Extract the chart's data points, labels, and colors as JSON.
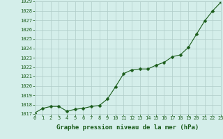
{
  "hours": [
    0,
    1,
    2,
    3,
    4,
    5,
    6,
    7,
    8,
    9,
    10,
    11,
    12,
    13,
    14,
    15,
    16,
    17,
    18,
    19,
    20,
    21,
    22,
    23
  ],
  "pressure": [
    1017.1,
    1017.6,
    1017.8,
    1017.8,
    1017.3,
    1017.5,
    1017.6,
    1017.8,
    1017.9,
    1018.6,
    1019.9,
    1021.3,
    1021.7,
    1021.8,
    1021.8,
    1022.2,
    1022.5,
    1023.1,
    1023.3,
    1024.1,
    1025.5,
    1026.9,
    1028.0,
    1028.9
  ],
  "line_color": "#1a5c1a",
  "marker_color": "#1a5c1a",
  "bg_color": "#d4eeea",
  "grid_color": "#b0ccc8",
  "tick_label_color": "#1a5c1a",
  "xlabel": "Graphe pression niveau de la mer (hPa)",
  "xlabel_color": "#1a5c1a",
  "xlim": [
    0,
    23
  ],
  "ylim": [
    1017,
    1029
  ],
  "yticks": [
    1017,
    1018,
    1019,
    1020,
    1021,
    1022,
    1023,
    1024,
    1025,
    1026,
    1027,
    1028,
    1029
  ],
  "xticks": [
    0,
    1,
    2,
    3,
    4,
    5,
    6,
    7,
    8,
    9,
    10,
    11,
    12,
    13,
    14,
    15,
    16,
    17,
    18,
    19,
    20,
    21,
    22,
    23
  ],
  "marker_size": 2.5,
  "line_width": 0.8,
  "tick_fontsize": 5.0,
  "xlabel_fontsize": 6.5
}
